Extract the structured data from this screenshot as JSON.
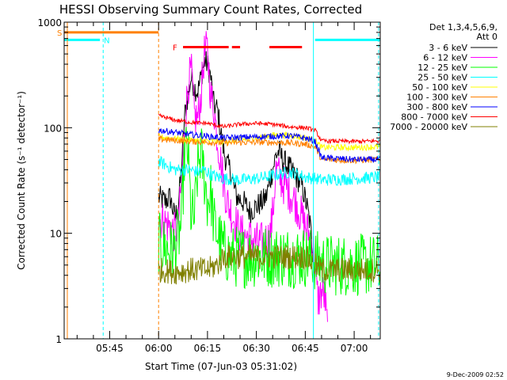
{
  "chart_data": {
    "type": "line",
    "title": "HESSI Observing Summary Count Rates, Corrected",
    "xlabel": "Start Time (07-Jun-03 05:31:02)",
    "ylabel": "Corrected Count Rate (s⁻¹ detector⁻¹)",
    "ylog": true,
    "ylim": [
      1,
      1000
    ],
    "xlim": [
      "05:31:02",
      "07:08:00"
    ],
    "x_ticks": [
      "05:45",
      "06:00",
      "06:15",
      "06:30",
      "06:45",
      "07:00"
    ],
    "y_ticks": [
      "1",
      "10",
      "100",
      "1000"
    ],
    "legend": {
      "header": [
        "Det 1,3,4,5,6,9,",
        "Att 0"
      ],
      "placement": "right"
    },
    "timestamp": "9-Dec-2009 02:52",
    "markers": [
      {
        "label": "S",
        "color": "#ff8000"
      },
      {
        "label": "N",
        "color": "#00ffff"
      },
      {
        "label": "F",
        "color": "#ff0000"
      }
    ],
    "intervals": {
      "saa": {
        "label": "S",
        "color": "#ff8000",
        "start": "05:31:02",
        "end": "06:00:00",
        "level": 800
      },
      "night": [
        {
          "label": "N",
          "color": "#00ffff",
          "start": "05:31:02",
          "end": "05:42:00",
          "level": 680
        },
        {
          "label": "N",
          "color": "#00ffff",
          "start": "06:48:00",
          "end": "07:08:00",
          "level": 680
        }
      ],
      "flare": {
        "label": "F",
        "color": "#ff0000",
        "level": 580,
        "segments": [
          [
            "06:07:30",
            "06:21:30"
          ],
          [
            "06:22:30",
            "06:25:00"
          ],
          [
            "06:34:00",
            "06:44:00"
          ]
        ]
      }
    },
    "vlines": [
      {
        "time": "05:32:00",
        "color": "#ff8000",
        "style": "solid"
      },
      {
        "time": "05:43:00",
        "color": "#00ffff",
        "style": "dash"
      },
      {
        "time": "06:00:00",
        "color": "#ff8000",
        "style": "dash"
      },
      {
        "time": "06:47:30",
        "color": "#00ffff",
        "style": "solid"
      },
      {
        "time": "07:07:30",
        "color": "#00ffff",
        "style": "dash"
      }
    ],
    "series": [
      {
        "name": "3 - 6 keV",
        "color": "#000000",
        "noise": 0.12,
        "t": [
          "06:00:00",
          "06:02:00",
          "06:03:30",
          "06:05:00",
          "06:06:00",
          "06:07:00",
          "06:08:00",
          "06:09:00",
          "06:10:00",
          "06:11:00",
          "06:12:00",
          "06:13:00",
          "06:14:00",
          "06:15:00",
          "06:16:00",
          "06:17:00",
          "06:18:00",
          "06:19:00",
          "06:20:00",
          "06:21:00",
          "06:22:00",
          "06:23:00",
          "06:24:00",
          "06:26:00",
          "06:28:00",
          "06:30:00",
          "06:32:00",
          "06:33:00",
          "06:34:00",
          "06:35:00",
          "06:36:00",
          "06:37:00",
          "06:38:00",
          "06:40:00",
          "06:42:00",
          "06:44:00",
          "06:45:30",
          "06:46:30",
          "06:47:30"
        ],
        "v": [
          22,
          20,
          22,
          14,
          18,
          40,
          130,
          200,
          300,
          240,
          220,
          300,
          430,
          400,
          300,
          160,
          150,
          95,
          60,
          45,
          40,
          28,
          22,
          20,
          16,
          18,
          20,
          22,
          30,
          40,
          55,
          60,
          50,
          42,
          35,
          28,
          18,
          12,
          6
        ]
      },
      {
        "name": "6 - 12 keV",
        "color": "#ff00ff",
        "noise": 0.2,
        "t": [
          "06:00:00",
          "06:03:00",
          "06:05:00",
          "06:06:00",
          "06:07:00",
          "06:08:00",
          "06:09:00",
          "06:10:00",
          "06:11:00",
          "06:12:00",
          "06:13:00",
          "06:14:00",
          "06:15:00",
          "06:16:00",
          "06:17:00",
          "06:18:00",
          "06:19:00",
          "06:20:00",
          "06:21:00",
          "06:23:00",
          "06:25:00",
          "06:28:00",
          "06:31:00",
          "06:34:00",
          "06:35:00",
          "06:36:00",
          "06:37:00",
          "06:38:00",
          "06:40:00",
          "06:42:00",
          "06:44:00",
          "06:46:00",
          "06:47:30",
          "06:48:00",
          "06:49:00",
          "06:50:00",
          "06:51:00",
          "06:52:00"
        ],
        "v": [
          14,
          12,
          10,
          12,
          28,
          100,
          250,
          350,
          130,
          120,
          200,
          500,
          550,
          200,
          150,
          80,
          50,
          30,
          20,
          14,
          10,
          9,
          8,
          9,
          15,
          40,
          35,
          30,
          25,
          20,
          14,
          10,
          7,
          4,
          2.3,
          2.8,
          2.5,
          1
        ]
      },
      {
        "name": "12 - 25 keV",
        "color": "#00ff00",
        "noise": 0.3,
        "t": [
          "06:00:00",
          "06:03:00",
          "06:05:00",
          "06:07:00",
          "06:08:00",
          "06:09:00",
          "06:10:00",
          "06:11:00",
          "06:12:00",
          "06:13:00",
          "06:14:00",
          "06:15:00",
          "06:16:00",
          "06:17:00",
          "06:18:00",
          "06:19:00",
          "06:20:00",
          "06:22:00",
          "06:25:00",
          "06:30:00",
          "06:35:00",
          "06:40:00",
          "06:45:00",
          "06:48:00",
          "06:52:00",
          "06:56:00",
          "07:00:00",
          "07:04:00",
          "07:08:00"
        ],
        "v": [
          8,
          7,
          7,
          12,
          60,
          60,
          14,
          14,
          40,
          60,
          35,
          20,
          25,
          12,
          10,
          8,
          7,
          6,
          6,
          6,
          6,
          6,
          6,
          5.5,
          5,
          5,
          5,
          5,
          5
        ]
      },
      {
        "name": "25 - 50 keV",
        "color": "#00ffff",
        "noise": 0.06,
        "t": [
          "06:00:00",
          "06:05:00",
          "06:08:00",
          "06:10:00",
          "06:12:00",
          "06:14:00",
          "06:16:00",
          "06:18:00",
          "06:20:00",
          "06:25:00",
          "06:30:00",
          "06:35:00",
          "06:40:00",
          "06:43:00",
          "06:45:00",
          "06:48:00",
          "06:50:00",
          "07:00:00",
          "07:08:00"
        ],
        "v": [
          48,
          40,
          40,
          40,
          38,
          40,
          36,
          34,
          33,
          32,
          33,
          35,
          38,
          36,
          34,
          33,
          32,
          33,
          34
        ]
      },
      {
        "name": "50 - 100 keV",
        "color": "#ffff00",
        "noise": 0.03,
        "t": [
          "06:00:00",
          "06:10:00",
          "06:20:00",
          "06:30:00",
          "06:35:00",
          "06:40:00",
          "06:45:00",
          "06:48:00",
          "06:50:00",
          "07:00:00",
          "07:08:00"
        ],
        "v": [
          82,
          76,
          74,
          80,
          85,
          85,
          80,
          76,
          65,
          65,
          66
        ]
      },
      {
        "name": "100 - 300 keV",
        "color": "#ff8000",
        "noise": 0.03,
        "t": [
          "06:00:00",
          "06:10:00",
          "06:20:00",
          "06:30:00",
          "06:40:00",
          "06:45:00",
          "06:48:00",
          "06:50:00",
          "07:00:00",
          "07:08:00"
        ],
        "v": [
          78,
          74,
          72,
          73,
          72,
          70,
          66,
          50,
          49,
          50
        ]
      },
      {
        "name": "300 - 800 keV",
        "color": "#0000ff",
        "noise": 0.03,
        "t": [
          "06:00:00",
          "06:10:00",
          "06:20:00",
          "06:30:00",
          "06:40:00",
          "06:45:00",
          "06:48:00",
          "06:50:00",
          "07:00:00",
          "07:08:00"
        ],
        "v": [
          95,
          86,
          80,
          82,
          84,
          80,
          74,
          52,
          50,
          50
        ]
      },
      {
        "name": "800 - 7000 keV",
        "color": "#ff0000",
        "noise": 0.02,
        "t": [
          "06:00:00",
          "06:05:00",
          "06:10:00",
          "06:15:00",
          "06:20:00",
          "06:25:00",
          "06:30:00",
          "06:35:00",
          "06:40:00",
          "06:45:00",
          "06:48:00",
          "06:50:00",
          "07:00:00",
          "07:08:00"
        ],
        "v": [
          130,
          118,
          112,
          110,
          102,
          108,
          110,
          108,
          102,
          100,
          95,
          75,
          74,
          75
        ]
      },
      {
        "name": "7000 - 20000 keV",
        "color": "#808000",
        "noise": 0.12,
        "t": [
          "06:00:00",
          "06:05:00",
          "06:10:00",
          "06:15:00",
          "06:18:00",
          "06:20:00",
          "06:25:00",
          "06:30:00",
          "06:40:00",
          "06:45:00",
          "06:48:00",
          "06:50:00",
          "07:00:00",
          "07:08:00"
        ],
        "v": [
          4.5,
          4.3,
          4.5,
          4.5,
          5,
          6,
          6,
          6,
          6,
          6,
          5,
          4.5,
          4.5,
          4.5
        ]
      }
    ]
  }
}
